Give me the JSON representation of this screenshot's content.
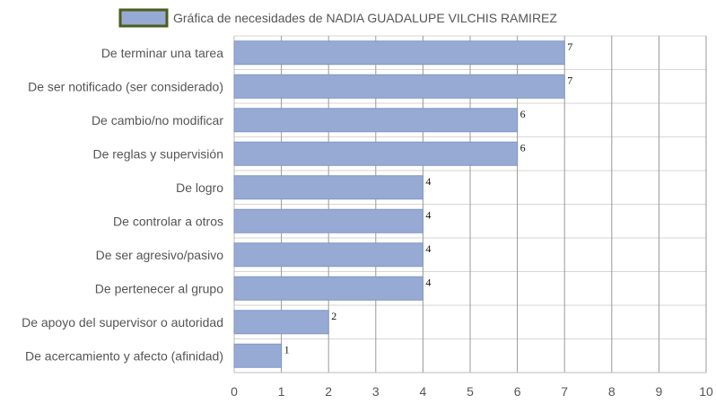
{
  "chart_data": {
    "type": "bar",
    "orientation": "horizontal",
    "categories": [
      "De terminar una tarea",
      "De ser notificado (ser considerado)",
      "De cambio/no modificar",
      "De reglas y supervisión",
      "De logro",
      "De controlar a otros",
      "De ser agresivo/pasivo",
      "De pertenecer al grupo",
      "De apoyo del supervisor o autoridad",
      "De acercamiento y afecto (afinidad)"
    ],
    "series": [
      {
        "name": "Gráfica de necesidades de NADIA GUADALUPE VILCHIS RAMIREZ",
        "values": [
          7,
          7,
          6,
          6,
          4,
          4,
          4,
          4,
          2,
          1
        ]
      }
    ],
    "xlim": [
      0,
      10
    ],
    "xticks": [
      0,
      1,
      2,
      3,
      4,
      5,
      6,
      7,
      8,
      9,
      10
    ],
    "grid": true,
    "legend_placement": "top-center",
    "data_labels": true,
    "colors": {
      "bar_fill": "#97aad4",
      "bar_stroke": "#8096c4",
      "legend_border": "#4a5e1e",
      "grid": "#d6d6d6",
      "major_grid": "#999999",
      "axis_text": "#555555"
    }
  }
}
